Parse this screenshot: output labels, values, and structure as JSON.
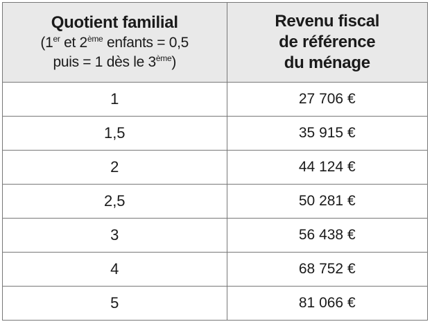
{
  "header": {
    "col1_title": "Quotient familial",
    "col1_sub_line1_a": "(1",
    "col1_sub_line1_sup1": "er",
    "col1_sub_line1_b": " et 2",
    "col1_sub_line1_sup2": "ème",
    "col1_sub_line1_c": " enfants = 0,5",
    "col1_sub_line2_a": "puis = 1 dès le 3",
    "col1_sub_line2_sup": "ème",
    "col1_sub_line2_b": ")",
    "col2_line1": "Revenu fiscal",
    "col2_line2": "de référence",
    "col2_line3": "du ménage"
  },
  "rows": [
    {
      "quotient": "1",
      "revenu": "27 706 €"
    },
    {
      "quotient": "1,5",
      "revenu": "35 915 €"
    },
    {
      "quotient": "2",
      "revenu": "44 124 €"
    },
    {
      "quotient": "2,5",
      "revenu": "50 281 €"
    },
    {
      "quotient": "3",
      "revenu": "56 438 €"
    },
    {
      "quotient": "4",
      "revenu": "68 752 €"
    },
    {
      "quotient": "5",
      "revenu": "81 066 €"
    }
  ]
}
